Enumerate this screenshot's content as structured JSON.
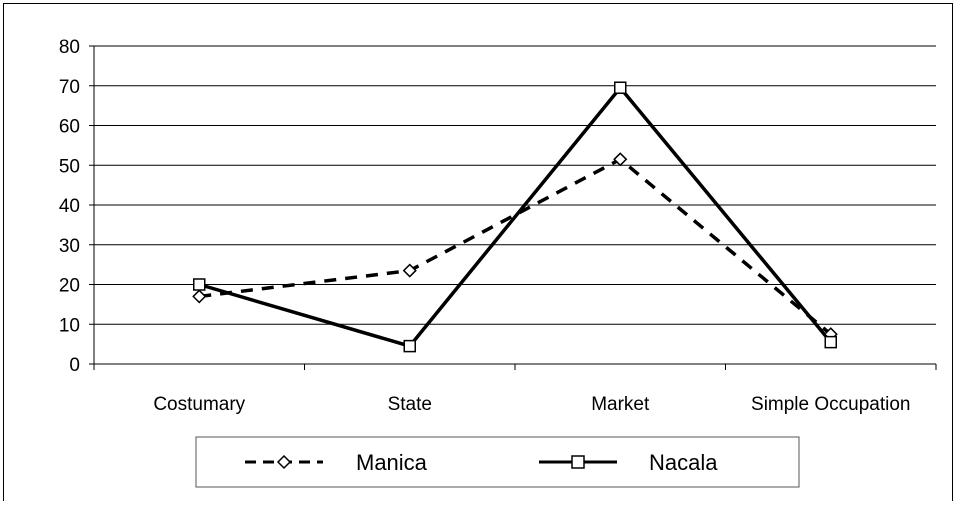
{
  "chart_data": {
    "type": "line",
    "categories": [
      "Costumary",
      "State",
      "Market",
      "Simple Occupation"
    ],
    "series": [
      {
        "name": "Manica",
        "values": [
          17,
          23.5,
          51.5,
          7.5
        ],
        "line_style": "dashed",
        "marker": "diamond",
        "color": "#000000"
      },
      {
        "name": "Nacala",
        "values": [
          20,
          4.5,
          69.5,
          5.5
        ],
        "line_style": "solid",
        "marker": "square",
        "color": "#000000"
      }
    ],
    "y_ticks": [
      "0",
      "10",
      "20",
      "30",
      "40",
      "50",
      "60",
      "70",
      "80"
    ],
    "ylim": [
      0,
      80
    ],
    "grid": true,
    "legend_position": "bottom"
  }
}
